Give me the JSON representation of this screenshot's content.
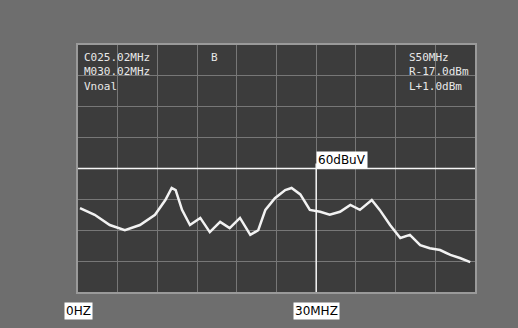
{
  "chart_data": {
    "type": "line",
    "x": [
      0.25,
      2.1,
      4,
      5.9,
      7.8,
      9.7,
      11,
      11.8,
      12.3,
      13.1,
      14.1,
      15.4,
      16.6,
      17.9,
      19.1,
      20.4,
      21.7,
      22.7,
      23.6,
      24.8,
      26.1,
      26.9,
      28,
      29.2,
      30.5,
      31.7,
      33,
      34.3,
      35.5,
      37,
      38,
      39.3,
      40.6,
      41.8,
      43.1,
      44.3,
      45.6,
      46.9,
      48.1,
      49.4
    ],
    "values": [
      47.2,
      45,
      41.7,
      40,
      41.7,
      45,
      49.8,
      53.7,
      53,
      46.6,
      41.7,
      44,
      39.4,
      42.7,
      40.7,
      44,
      38.5,
      40,
      46.6,
      50.4,
      53,
      53.7,
      51.6,
      46.6,
      46,
      45,
      46,
      48.2,
      46.6,
      49.8,
      46.6,
      41.7,
      37.5,
      38.5,
      35.2,
      34.2,
      33.6,
      32,
      31,
      29.7
    ],
    "color": "#f2f2f2",
    "xlim": [
      0,
      50
    ],
    "xticks": [
      0,
      5,
      10,
      15,
      20,
      25,
      30,
      35,
      40,
      45,
      50
    ],
    "ylim": [
      20,
      100
    ],
    "yticks": [
      20,
      30,
      40,
      50,
      60,
      70,
      80,
      90,
      100
    ],
    "grid": true,
    "tick_labels": false,
    "markers": [
      {
        "axis": "y",
        "value": 60,
        "text": "60dBuV"
      },
      {
        "axis": "x",
        "value": 30,
        "text": "30MHZ"
      }
    ],
    "annotations": [
      {
        "x": 0,
        "text": "0HZ"
      }
    ],
    "screen_text": {
      "left": [
        "C025.02MHz",
        "M030.02MHz",
        "Vnoal"
      ],
      "center": "B",
      "right": [
        "S50MHz",
        "R-17.0dBm",
        "L+1.0dBm"
      ]
    }
  }
}
